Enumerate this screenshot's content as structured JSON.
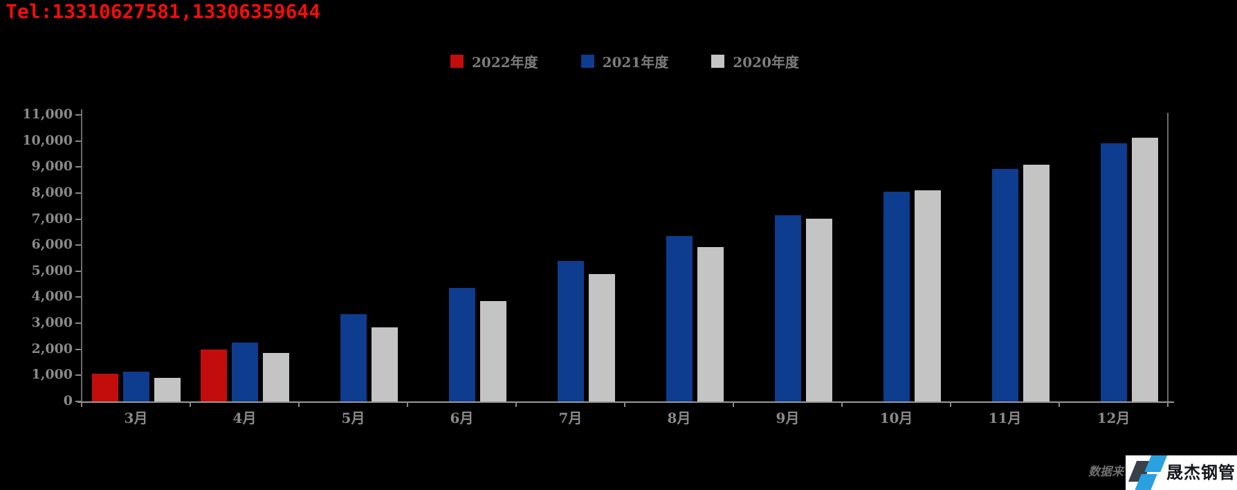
{
  "header": {
    "tel": "Tel:13310627581,13306359644",
    "tel_color": "#f20d0d"
  },
  "chart_data": {
    "type": "bar",
    "title": "",
    "xlabel": "",
    "ylabel": "",
    "categories": [
      "3月",
      "4月",
      "5月",
      "6月",
      "7月",
      "8月",
      "9月",
      "10月",
      "11月",
      "12月"
    ],
    "series": [
      {
        "name": "2022年度",
        "color": "#c30d0d",
        "values": [
          1050,
          2000,
          null,
          null,
          null,
          null,
          null,
          null,
          null,
          null
        ]
      },
      {
        "name": "2021年度",
        "color": "#0e3c8e",
        "values": [
          1150,
          2250,
          3350,
          4360,
          5390,
          6340,
          7140,
          8040,
          8930,
          9910
        ]
      },
      {
        "name": "2020年度",
        "color": "#c4c4c4",
        "values": [
          900,
          1850,
          2850,
          3860,
          4880,
          5920,
          7010,
          8110,
          9090,
          10130
        ]
      }
    ],
    "ylim": [
      0,
      11000
    ],
    "ytick_step": 1000,
    "ytick_labels": [
      "0",
      "1,000",
      "2,000",
      "3,000",
      "4,000",
      "5,000",
      "6,000",
      "7,000",
      "8,000",
      "9,000",
      "10,000",
      "11,000"
    ],
    "legend_position": "top-center",
    "grid": false,
    "background_color": "#000000",
    "axis_label_color": "#8a8a8a",
    "legend_label_color": "#7d7d7d"
  },
  "watermark": {
    "source_text_partial": "数据来",
    "logo_text": "晟杰钢管",
    "logo_background": "#ffffff",
    "logo_blue": "#2aa0df",
    "logo_dark": "#3a4047"
  }
}
